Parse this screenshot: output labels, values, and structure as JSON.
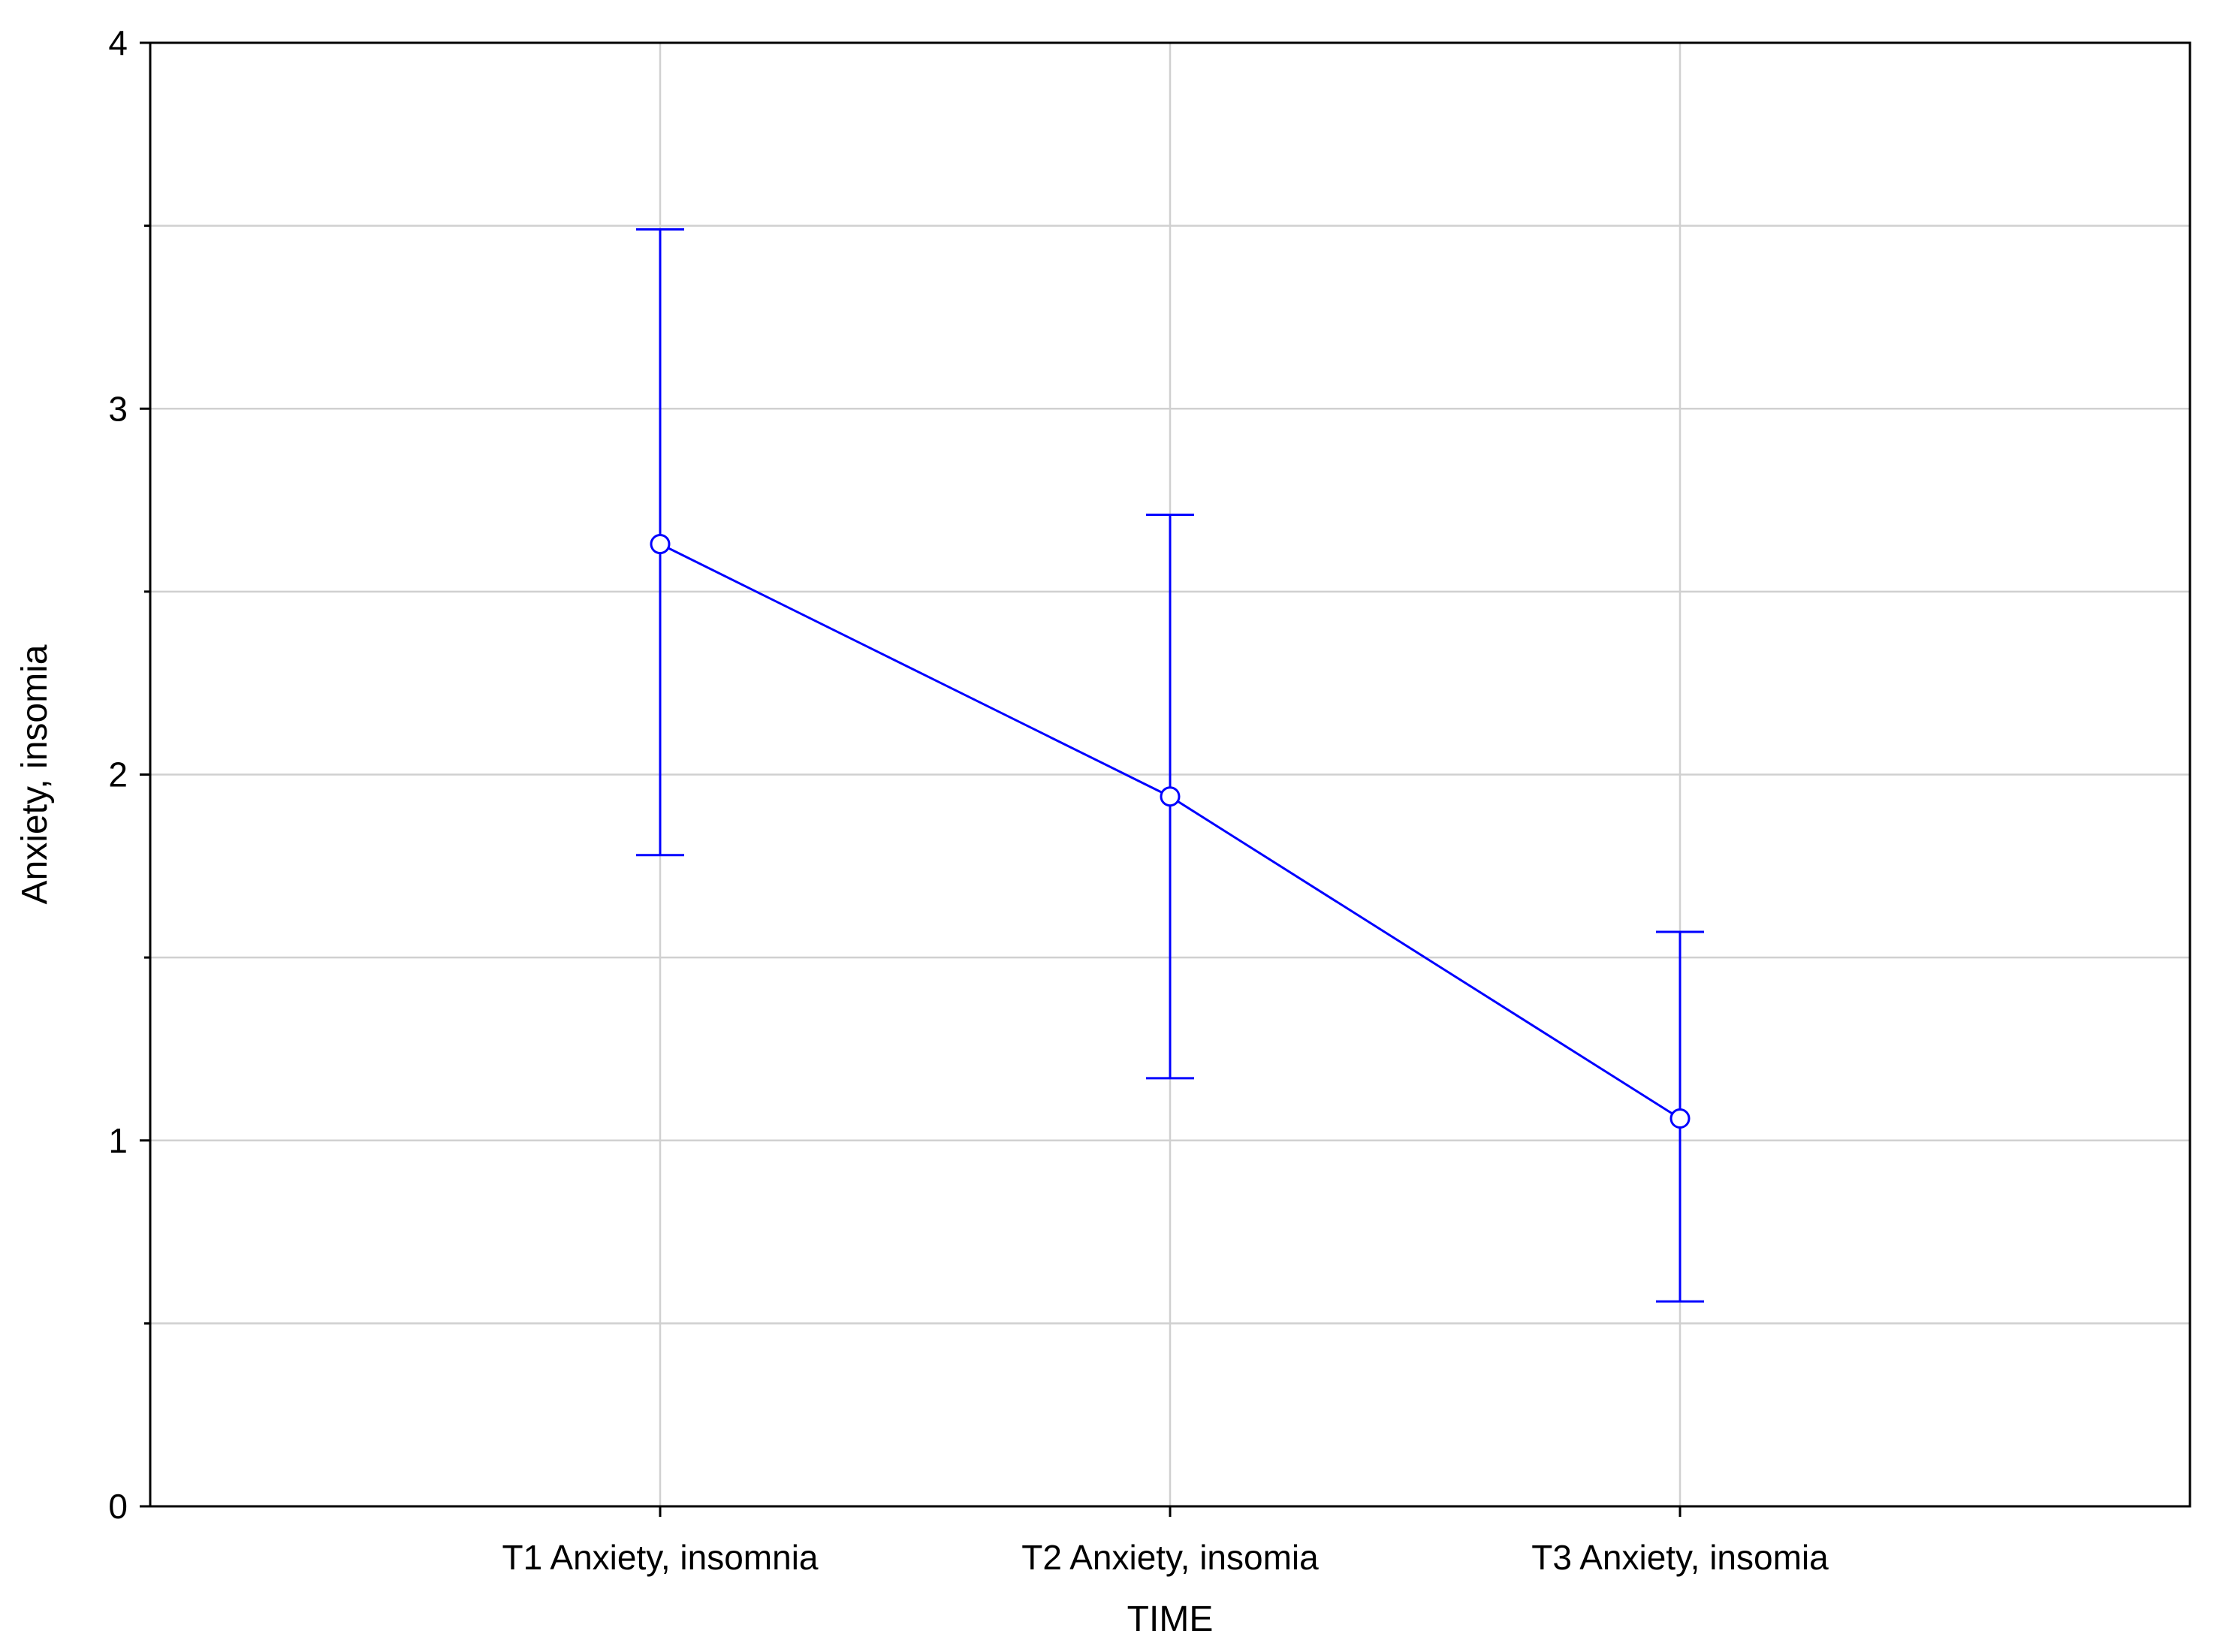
{
  "chart_data": {
    "type": "line",
    "title": "",
    "xlabel": "TIME",
    "ylabel": "Anxiety, insomia",
    "categories": [
      "T1 Anxiety, insomnia",
      "T2 Anxiety, insomia",
      "T3 Anxiety, insomia"
    ],
    "series": [
      {
        "values": [
          2.63,
          1.94,
          1.06
        ],
        "error_lower": [
          1.78,
          1.17,
          0.56
        ],
        "error_upper": [
          3.49,
          2.71,
          1.57
        ]
      }
    ],
    "ylim": [
      0,
      4
    ],
    "yticks": [
      0,
      1,
      2,
      3,
      4
    ],
    "y_gridlines": [
      0.5,
      1,
      1.5,
      2,
      2.5,
      3,
      3.5
    ],
    "x_range_categories": [
      -1,
      3
    ],
    "grid": true,
    "legend": "none",
    "colors": {
      "series": "#0000ff",
      "grid": "#d0d0d0",
      "frame": "#000000"
    }
  }
}
